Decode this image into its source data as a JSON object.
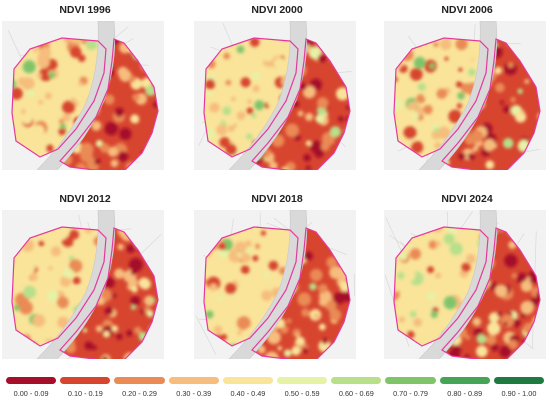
{
  "panels": [
    {
      "title": "NDVI 1996",
      "seed": 11,
      "greenness": 0.35
    },
    {
      "title": "NDVI 2000",
      "seed": 23,
      "greenness": 0.45
    },
    {
      "title": "NDVI 2006",
      "seed": 37,
      "greenness": 0.4
    },
    {
      "title": "NDVI 2012",
      "seed": 41,
      "greenness": 0.42
    },
    {
      "title": "NDVI 2018",
      "seed": 53,
      "greenness": 0.4
    },
    {
      "title": "NDVI 2024",
      "seed": 67,
      "greenness": 0.48
    }
  ],
  "legend": {
    "classes": [
      {
        "label": "0.00 - 0.09",
        "color": "#a50f2a"
      },
      {
        "label": "0.10 - 0.19",
        "color": "#d7452f"
      },
      {
        "label": "0.20 - 0.29",
        "color": "#ea8a55"
      },
      {
        "label": "0.30 - 0.39",
        "color": "#f6bd7d"
      },
      {
        "label": "0.40 - 0.49",
        "color": "#f9e49a"
      },
      {
        "label": "0.50 - 0.59",
        "color": "#e6f2a6"
      },
      {
        "label": "0.60 - 0.69",
        "color": "#b8df8a"
      },
      {
        "label": "0.70 - 0.79",
        "color": "#80c46a"
      },
      {
        "label": "0.80 - 0.89",
        "color": "#45a557"
      },
      {
        "label": "0.90 - 1.00",
        "color": "#1f7a3f"
      }
    ]
  },
  "colors": {
    "boundary": "#e6399b",
    "river": "#d9d9d9",
    "basemap": "#f2f2f2"
  }
}
